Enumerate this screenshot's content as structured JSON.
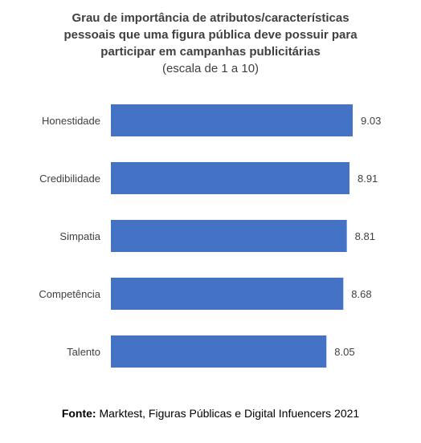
{
  "chart_data": {
    "type": "bar",
    "orientation": "horizontal",
    "title_lines": [
      "Grau de importância de atributos/características",
      "pessoais que uma figura pública deve possuir para",
      "participar em campanhas publicitárias"
    ],
    "subtitle": "(escala de 1 a 10)",
    "categories": [
      "Honestidade",
      "Credibilidade",
      "Simpatia",
      "Competência",
      "Talento"
    ],
    "values": [
      9.03,
      8.91,
      8.81,
      8.68,
      8.05
    ],
    "value_labels": [
      "9.03",
      "8.91",
      "8.81",
      "8.68",
      "8.05"
    ],
    "bar_color": "#4472C4",
    "xlim": [
      0,
      10
    ],
    "grid": false,
    "legend": "none"
  },
  "source": {
    "prefix": "Fonte:",
    "text": " Marktest, Figuras Públicas e Digital Infuencers 2021"
  }
}
